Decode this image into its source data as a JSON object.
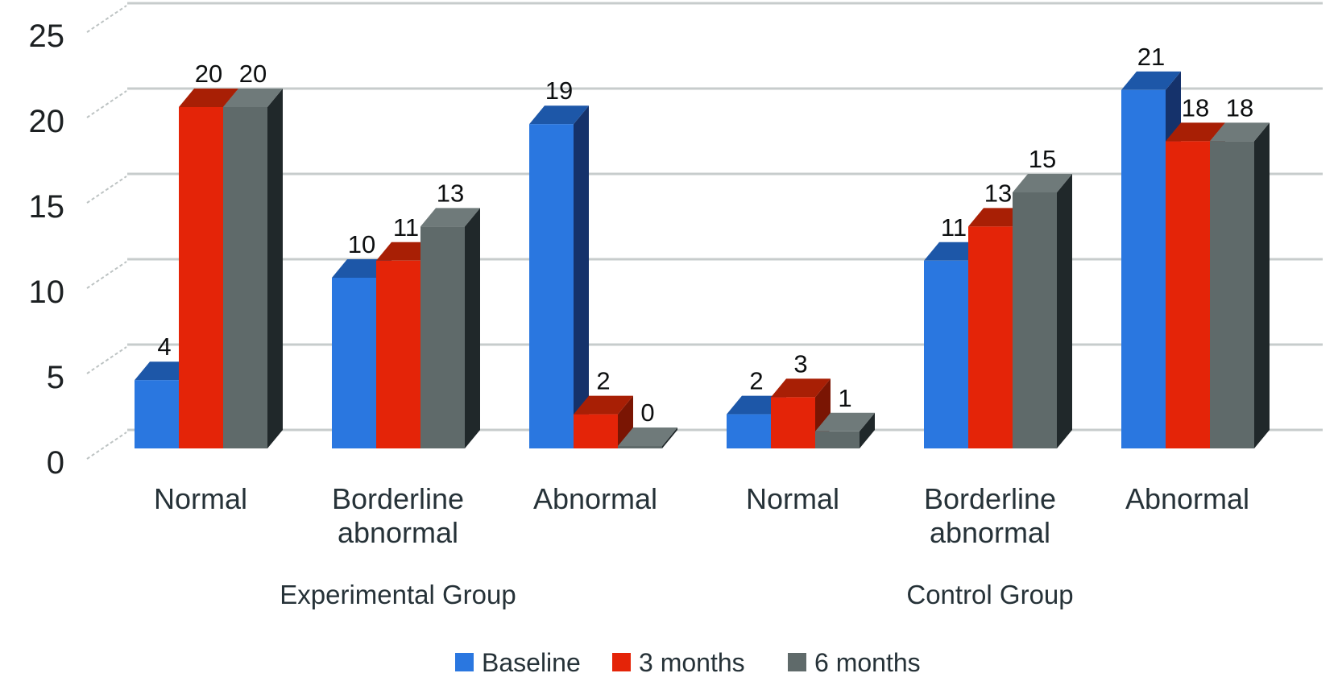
{
  "chart_data": {
    "type": "bar",
    "style": "3d-clustered-column",
    "title": "",
    "xlabel": "",
    "ylabel": "",
    "ylim": [
      0,
      25
    ],
    "yticks": [
      0,
      5,
      10,
      15,
      20,
      25
    ],
    "grid": true,
    "legend_position": "bottom",
    "x_categories": [
      "Normal",
      "Borderline abnormal",
      "Abnormal",
      "Normal",
      "Borderline abnormal",
      "Abnormal"
    ],
    "group_labels": [
      "Experimental Group",
      "Control Group"
    ],
    "group_spans": [
      [
        0,
        2
      ],
      [
        3,
        5
      ]
    ],
    "series": [
      {
        "name": "Baseline",
        "values": [
          4,
          10,
          19,
          2,
          11,
          21
        ],
        "color": "#2A77E0",
        "color_top": "#1D57A8",
        "color_side": "#15326B"
      },
      {
        "name": "3 months",
        "values": [
          20,
          11,
          2,
          3,
          13,
          18
        ],
        "color": "#E42408",
        "color_top": "#A81F05",
        "color_side": "#7A1503"
      },
      {
        "name": "6 months",
        "values": [
          20,
          13,
          0,
          1,
          15,
          18
        ],
        "color": "#5F6A6A",
        "color_top": "#6F7A7A",
        "color_side": "#20282A"
      }
    ]
  },
  "colors": {
    "background": "#FFFFFF",
    "gridline": "#C7CCCC",
    "tick_connector": "#BDC3C3",
    "axis_text": "#1C2022",
    "label_text": "#263238",
    "value_text": "#0D0F10"
  }
}
